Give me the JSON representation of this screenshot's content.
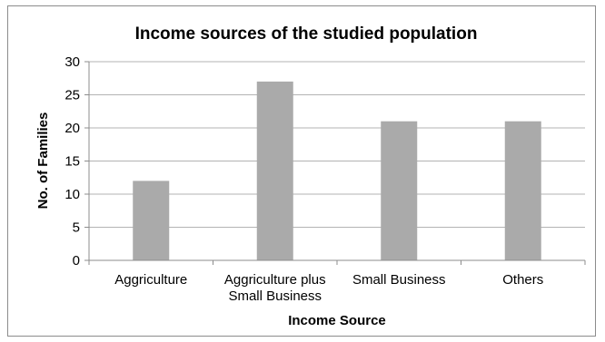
{
  "chart_data": {
    "type": "bar",
    "title": "Income sources of the studied population",
    "xlabel": "Income Source",
    "ylabel": "No. of Families",
    "categories": [
      [
        "Aggriculture"
      ],
      [
        "Aggriculture plus",
        "Small Business"
      ],
      [
        "Small Business"
      ],
      [
        "Others"
      ]
    ],
    "values": [
      12,
      27,
      21,
      21
    ],
    "ylim": [
      0,
      30
    ],
    "yticks": [
      "0",
      "5",
      "10",
      "15",
      "20",
      "25",
      "30"
    ],
    "grid": true,
    "legend": "none",
    "bar_color": "#aaaaaa",
    "grid_color": "#b3b3b3",
    "axis_color": "#8c8c8c"
  }
}
